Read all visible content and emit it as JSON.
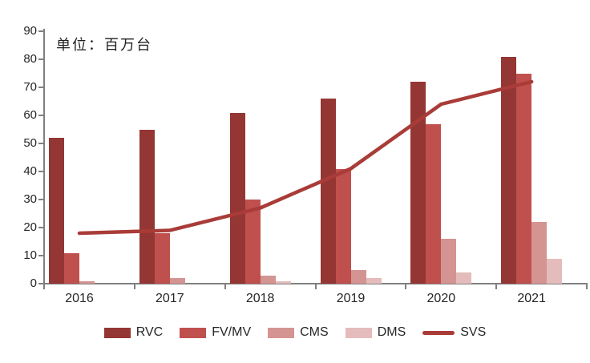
{
  "title": "单位：百万台",
  "colors": {
    "axis": "#808080",
    "text": "#262626",
    "rvc": "#943634",
    "fvmv": "#C0504D",
    "cms": "#D49492",
    "dms": "#E4BCBB",
    "svs": "#A93C38"
  },
  "chart_data": {
    "type": "bar",
    "subtype": "grouped bars with line overlay",
    "title": "单位：百万台",
    "categories": [
      "2016",
      "2017",
      "2018",
      "2019",
      "2020",
      "2021"
    ],
    "series": [
      {
        "name": "RVC",
        "type": "bar",
        "color": "#943634",
        "values": [
          52,
          55,
          61,
          66,
          72,
          81
        ]
      },
      {
        "name": "FV/MV",
        "type": "bar",
        "color": "#C0504D",
        "values": [
          11,
          18,
          30,
          41,
          57,
          75
        ]
      },
      {
        "name": "CMS",
        "type": "bar",
        "color": "#D49492",
        "values": [
          1,
          2,
          3,
          5,
          16,
          22
        ]
      },
      {
        "name": "DMS",
        "type": "bar",
        "color": "#E4BCBB",
        "values": [
          0,
          0,
          1,
          2,
          4,
          9
        ]
      },
      {
        "name": "SVS",
        "type": "line",
        "color": "#A93C38",
        "values": [
          18,
          19,
          27,
          41,
          64,
          72
        ]
      }
    ],
    "xlabel": "",
    "ylabel": "",
    "ylim": [
      0,
      90
    ],
    "ytick_step": 10,
    "ytick_labels": [
      "0",
      "10",
      "20",
      "30",
      "40",
      "50",
      "60",
      "70",
      "80",
      "90"
    ],
    "grid": false,
    "legend_position": "bottom",
    "legend_items": [
      "RVC",
      "FV/MV",
      "CMS",
      "DMS",
      "SVS"
    ]
  }
}
